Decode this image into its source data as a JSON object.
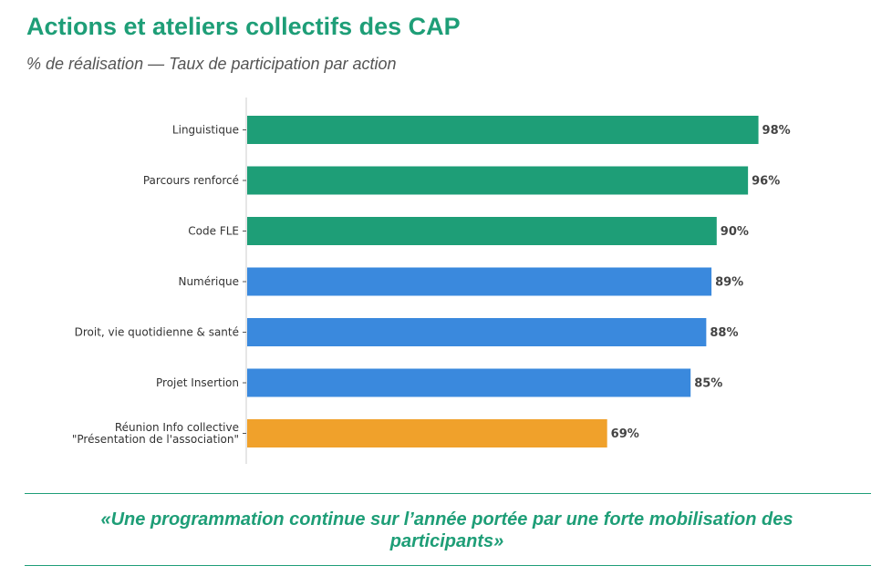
{
  "header": {
    "title": "Actions et ateliers collectifs des CAP",
    "subtitle": "% de réalisation — Taux de participation par action"
  },
  "colors": {
    "green": "#1e9e77",
    "blue": "#3a89dd",
    "orange": "#f0a12b",
    "axis": "#cccccc"
  },
  "chart_data": {
    "type": "bar",
    "orientation": "horizontal",
    "title": "Actions et ateliers collectifs des CAP",
    "subtitle": "% de réalisation — Taux de participation par action",
    "xlim": [
      0,
      100
    ],
    "grid": false,
    "categories": [
      [
        "Linguistique"
      ],
      [
        "Parcours renforcé"
      ],
      [
        "Code FLE"
      ],
      [
        "Numérique"
      ],
      [
        "Droit, vie quotidienne & santé"
      ],
      [
        "Projet Insertion"
      ],
      [
        "Réunion Info collective",
        "\"Présentation de l'association\""
      ]
    ],
    "values": [
      98,
      96,
      90,
      89,
      88,
      85,
      69
    ],
    "value_labels": [
      "98%",
      "96%",
      "90%",
      "89%",
      "88%",
      "85%",
      "69%"
    ],
    "bar_colors": [
      "#1e9e77",
      "#1e9e77",
      "#1e9e77",
      "#3a89dd",
      "#3a89dd",
      "#3a89dd",
      "#f0a12b"
    ]
  },
  "footer": {
    "quote_line1": "«Une programmation continue sur l’année portée par une forte mobilisation des",
    "quote_line2": "participants»"
  }
}
